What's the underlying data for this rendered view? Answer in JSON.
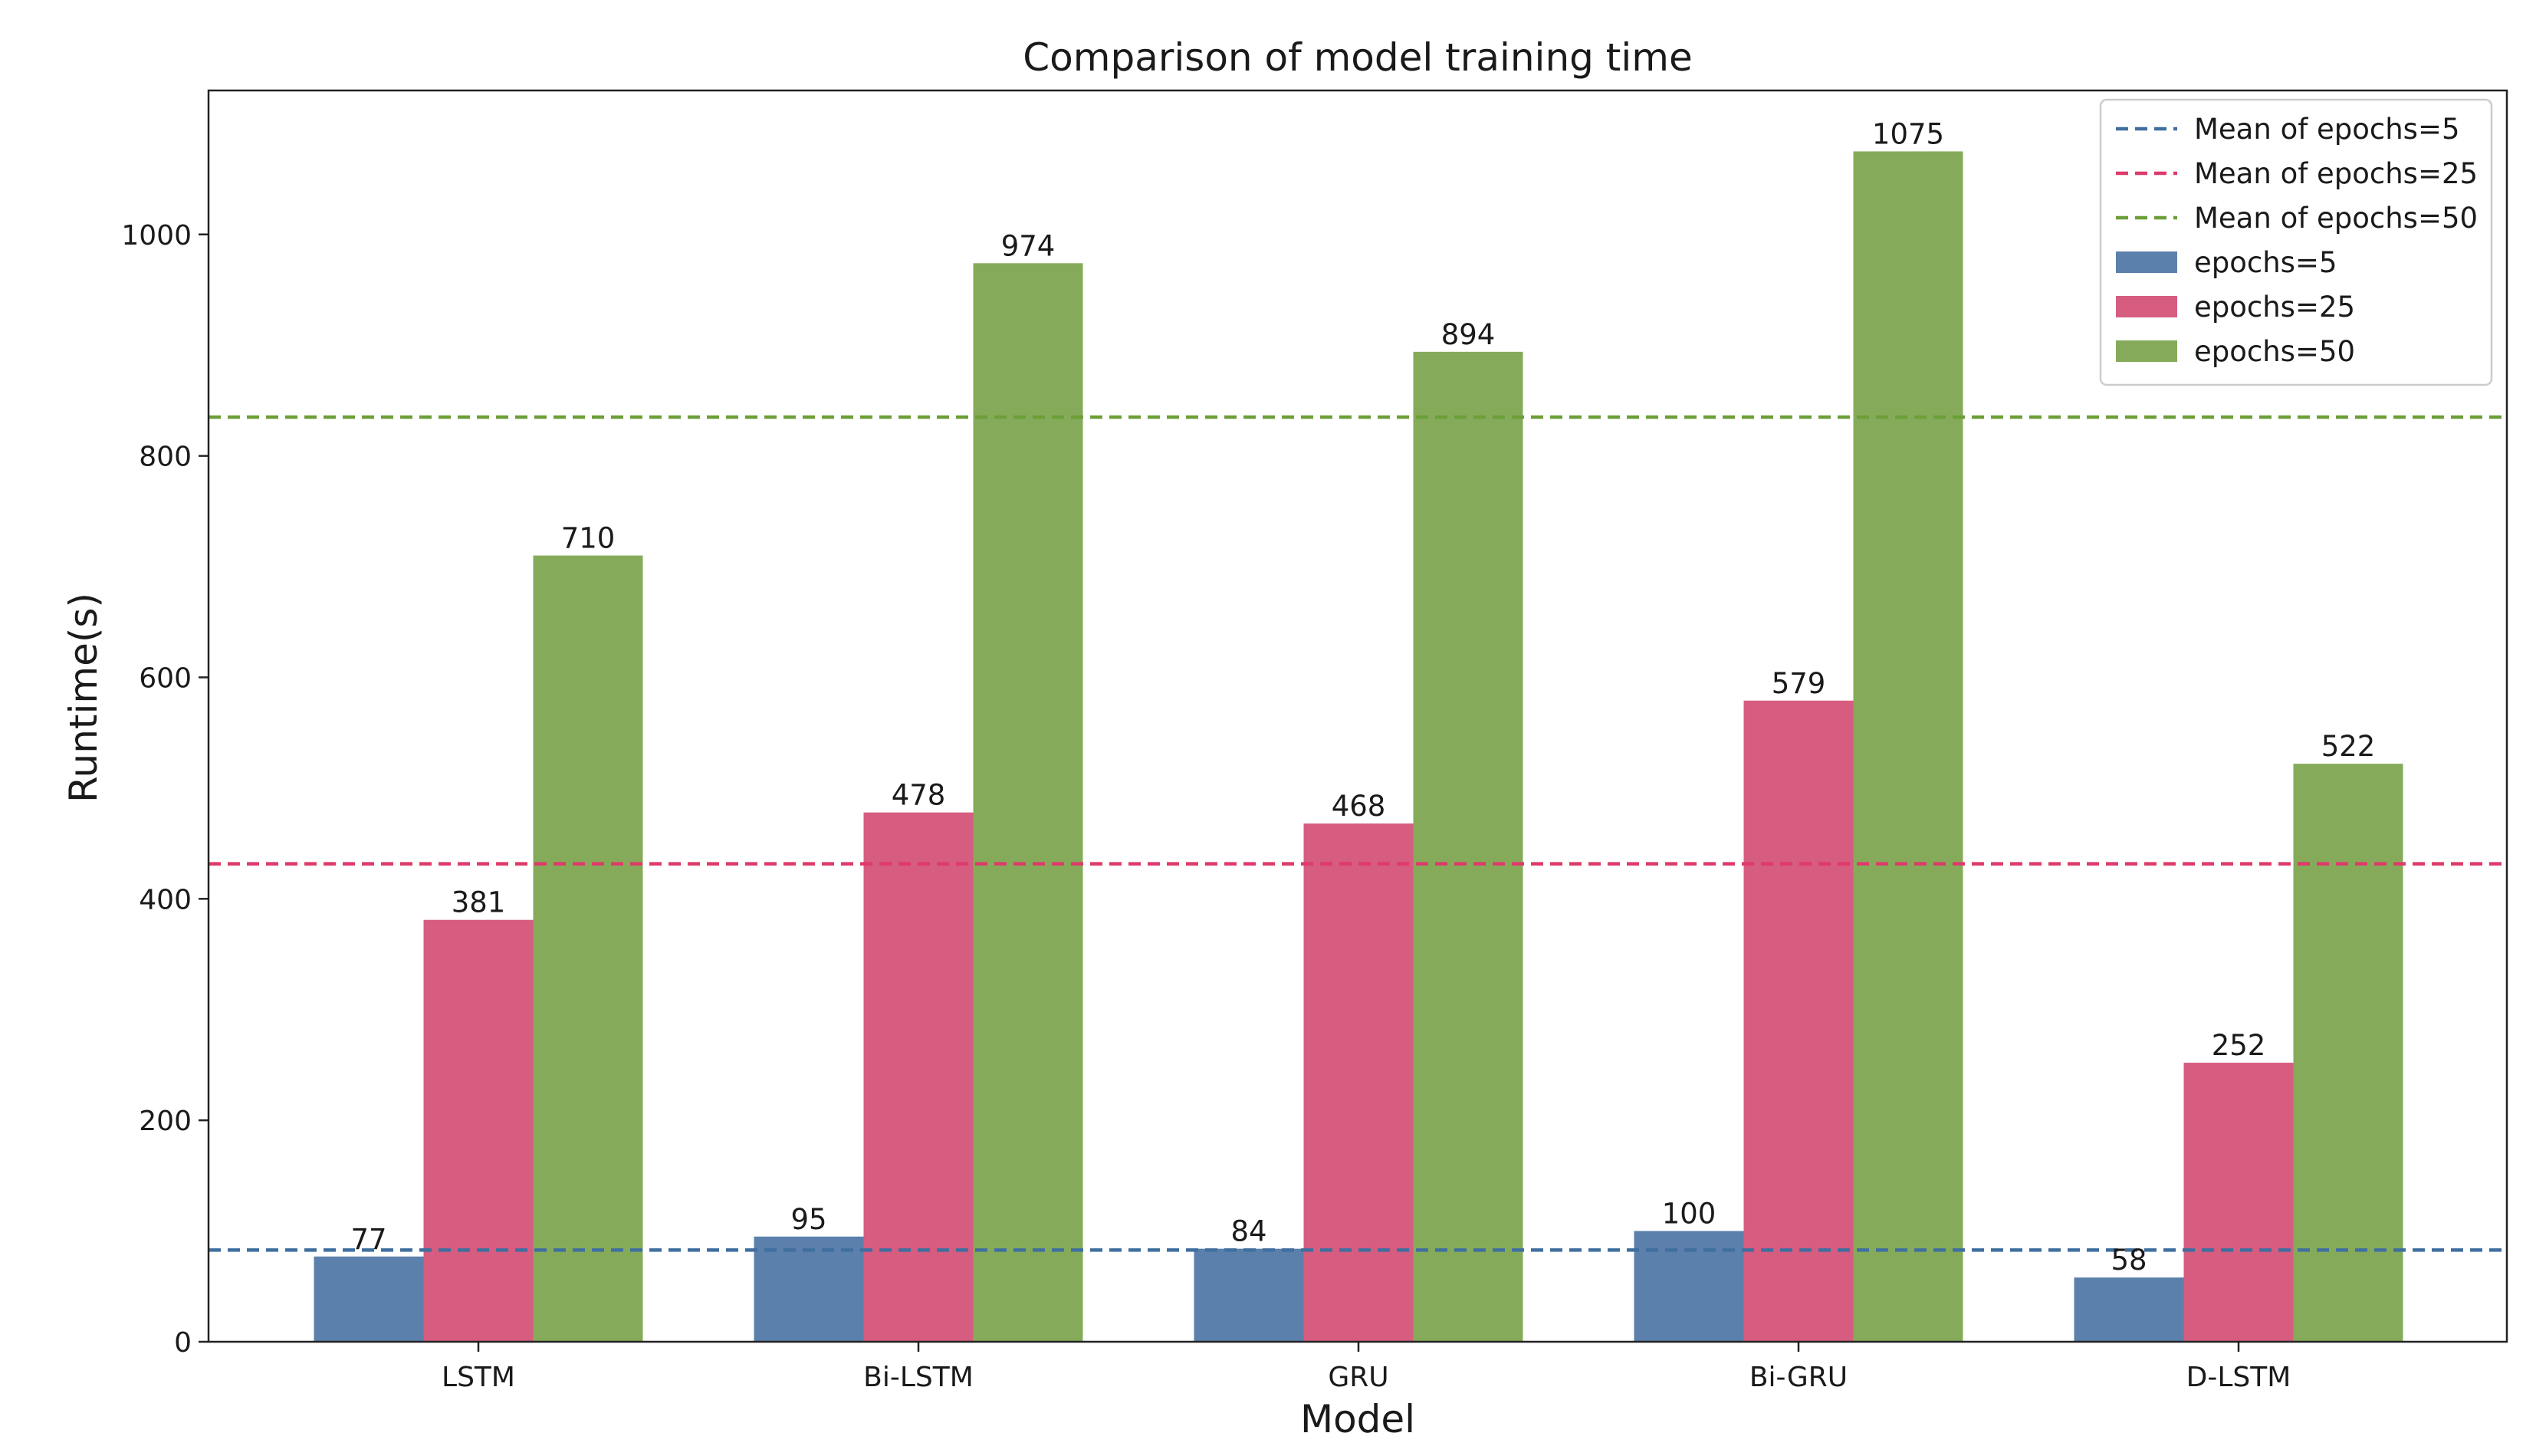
{
  "chart_data": {
    "type": "bar",
    "title": "Comparison of model training time",
    "xlabel": "Model",
    "ylabel": "Runtime(s)",
    "categories": [
      "LSTM",
      "Bi-LSTM",
      "GRU",
      "Bi-GRU",
      "D-LSTM"
    ],
    "series": [
      {
        "name": "epochs=5",
        "values": [
          77,
          95,
          84,
          100,
          58
        ],
        "color": "#5b80ab"
      },
      {
        "name": "epochs=25",
        "values": [
          381,
          478,
          468,
          579,
          252
        ],
        "color": "#d65c80"
      },
      {
        "name": "epochs=50",
        "values": [
          710,
          974,
          894,
          1075,
          522
        ],
        "color": "#85ab5a"
      }
    ],
    "mean_lines": [
      {
        "name": "Mean of epochs=5",
        "value": 82.8,
        "color": "#3f6f9f"
      },
      {
        "name": "Mean of epochs=25",
        "value": 431.6,
        "color": "#de3a6a"
      },
      {
        "name": "Mean of epochs=50",
        "value": 835,
        "color": "#6c9f38"
      }
    ],
    "ylim": [
      0,
      1130
    ],
    "yticks": [
      0,
      200,
      400,
      600,
      800,
      1000
    ],
    "grid": false,
    "legend_position": "top-right"
  }
}
